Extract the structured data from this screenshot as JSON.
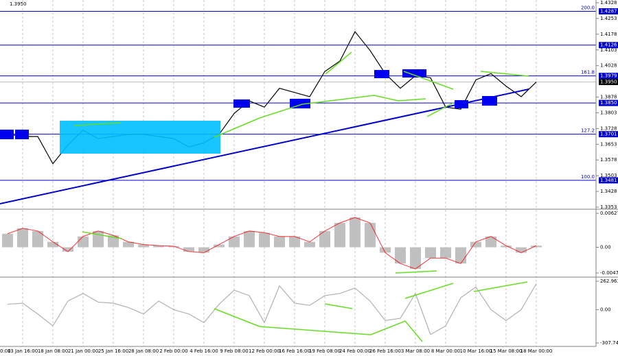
{
  "chart_data": [
    {
      "type": "line",
      "subtitle": "1.3950",
      "first_time_label": "0:00",
      "color": "#000000",
      "categories": [
        null,
        "13 Jan 16:00",
        null,
        "18 Jan 08:00",
        null,
        "21 Jan 00:00",
        null,
        "25 Jan 16:00",
        null,
        "28 Jan 08:00",
        null,
        "2 Feb 00:00",
        null,
        "4 Feb 16:00",
        null,
        "9 Feb 08:00",
        null,
        "12 Feb 00:00",
        null,
        "16 Feb 16:00",
        null,
        "19 Feb 08:00",
        null,
        "24 Feb 00:00",
        null,
        "26 Feb 16:00",
        null,
        "3 Mar 08:00",
        null,
        "8 Mar 00:00",
        null,
        "10 Mar 16:00",
        null,
        "15 Mar 08:00",
        null,
        "18 Mar 00:00"
      ],
      "values": [
        1.3701,
        1.369,
        1.369,
        1.356,
        1.365,
        1.372,
        1.368,
        1.369,
        1.37,
        1.37,
        1.369,
        1.368,
        1.364,
        1.366,
        1.37,
        1.38,
        1.386,
        1.383,
        1.392,
        1.39,
        1.388,
        1.4,
        1.405,
        1.419,
        1.41,
        1.399,
        1.392,
        1.398,
        1.397,
        1.383,
        1.382,
        1.396,
        1.399,
        1.393,
        1.388,
        1.395
      ],
      "ylim": [
        1.3353,
        1.4328
      ],
      "yticks": [
        1.4328,
        1.4253,
        1.4178,
        1.4103,
        1.4028,
        1.3878,
        1.3803,
        1.3728,
        1.3653,
        1.3578,
        1.3503,
        1.3428,
        1.3353
      ],
      "current": {
        "value": 1.395,
        "label": "1.3950"
      },
      "levels": [
        {
          "value": 1.4287,
          "fib": "200.0"
        },
        {
          "value": 1.4126
        },
        {
          "value": 1.3979,
          "fib": "161.8"
        },
        {
          "value": 1.385,
          "label": "1.3850"
        },
        {
          "value": 1.3701,
          "fib": "127.2"
        },
        {
          "value": 1.3481,
          "fib": "100.0"
        }
      ],
      "level_color": "#0000cc",
      "grid": true
    },
    {
      "type": "bar",
      "color": "#c0c0c0",
      "line_color": "#ff0000",
      "values": [
        0.0025,
        0.0035,
        0.003,
        0.001,
        -0.0008,
        0.002,
        0.003,
        0.0022,
        0.001,
        0.0005,
        0.0003,
        0.0002,
        -0.0008,
        -0.001,
        0.0005,
        0.002,
        0.003,
        0.0027,
        0.002,
        0.002,
        0.001,
        0.003,
        0.0045,
        0.0055,
        0.0045,
        -0.001,
        -0.003,
        -0.004,
        -0.002,
        -0.002,
        -0.003,
        0.001,
        0.002,
        0.0003,
        -0.001,
        0.0003
      ],
      "ylim": [
        -0.00475,
        0.00627
      ],
      "yticks": [
        0.00627,
        {
          "value": 0,
          "label": "0.00"
        },
        -0.00475
      ]
    },
    {
      "type": "line",
      "color": "#b0b0b0",
      "values": [
        50,
        60,
        -40,
        -150,
        80,
        150,
        70,
        60,
        20,
        -40,
        80,
        0,
        -40,
        -120,
        50,
        180,
        130,
        -120,
        220,
        60,
        40,
        130,
        150,
        200,
        80,
        -100,
        -80,
        150,
        -230,
        -150,
        110,
        210,
        0,
        -100,
        0,
        240
      ],
      "ylim": [
        -307.7436,
        262.9636
      ],
      "yticks": [
        262.9636,
        {
          "value": 0,
          "label": "0.00"
        },
        -307.7436
      ]
    }
  ]
}
